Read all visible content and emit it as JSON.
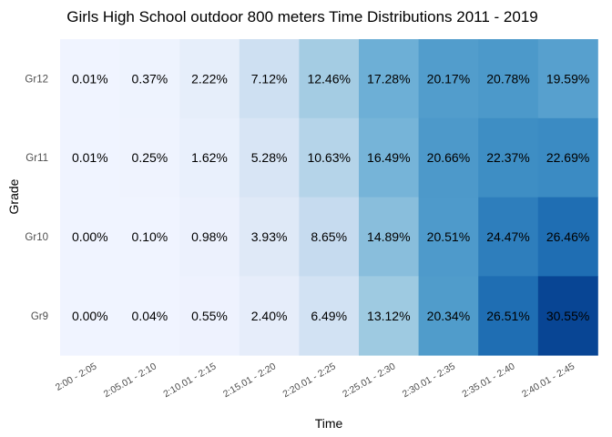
{
  "chart_data": {
    "type": "heatmap",
    "title": "Girls High School outdoor 800 meters Time Distributions 2011 - 2019",
    "xlabel": "Time",
    "ylabel": "Grade",
    "x_categories": [
      "2:00 - 2:05",
      "2:05.01 - 2:10",
      "2:10.01 - 2:15",
      "2:15.01 - 2:20",
      "2:20.01 - 2:25",
      "2:25.01 - 2:30",
      "2:30.01 - 2:35",
      "2:35.01 - 2:40",
      "2:40.01 - 2:45"
    ],
    "y_categories": [
      "Gr12",
      "Gr11",
      "Gr10",
      "Gr9"
    ],
    "values": [
      [
        0.01,
        0.37,
        2.22,
        7.12,
        12.46,
        17.28,
        20.17,
        20.78,
        19.59
      ],
      [
        0.01,
        0.25,
        1.62,
        5.28,
        10.63,
        16.49,
        20.66,
        22.37,
        22.69
      ],
      [
        0.0,
        0.1,
        0.98,
        3.93,
        8.65,
        14.89,
        20.51,
        24.47,
        26.46
      ],
      [
        0.0,
        0.04,
        0.55,
        2.4,
        6.49,
        13.12,
        20.34,
        26.51,
        30.55
      ]
    ],
    "labels": [
      [
        "0.01%",
        "0.37%",
        "2.22%",
        "7.12%",
        "12.46%",
        "17.28%",
        "20.17%",
        "20.78%",
        "19.59%"
      ],
      [
        "0.01%",
        "0.25%",
        "1.62%",
        "5.28%",
        "10.63%",
        "16.49%",
        "20.66%",
        "22.37%",
        "22.69%"
      ],
      [
        "0.00%",
        "0.10%",
        "0.98%",
        "3.93%",
        "8.65%",
        "14.89%",
        "20.51%",
        "24.47%",
        "26.46%"
      ],
      [
        "0.00%",
        "0.04%",
        "0.55%",
        "2.40%",
        "6.49%",
        "13.12%",
        "20.34%",
        "26.51%",
        "30.55%"
      ]
    ],
    "color_low": "#eff3ff",
    "color_high": "#08519c",
    "color_scale": [
      "#f0f4ff",
      "#dde8f6",
      "#c6dbef",
      "#9ecae1",
      "#6baed6",
      "#4292c6",
      "#2171b5",
      "#084594"
    ],
    "legend": "none",
    "grid": false
  }
}
